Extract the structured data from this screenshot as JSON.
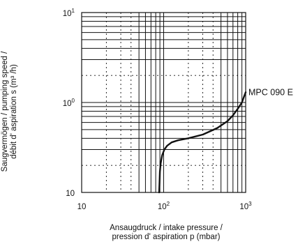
{
  "chart_data": {
    "type": "line",
    "xscale": "log",
    "yscale": "log",
    "xlim": [
      10,
      1000
    ],
    "ylim": [
      0.1,
      10
    ],
    "x_ticks": [
      {
        "base": "10",
        "exp": ""
      },
      {
        "base": "10",
        "exp": "2"
      },
      {
        "base": "10",
        "exp": "3"
      }
    ],
    "y_ticks": [
      {
        "base": "10",
        "exp": ""
      },
      {
        "base": "10",
        "exp": "0"
      },
      {
        "base": "10",
        "exp": "1"
      }
    ],
    "xlabel_lines": [
      "Ansaugdruck / intake pressure /",
      "pression d' aspiration p (mbar)"
    ],
    "ylabel_lines": [
      "Saugvermögen / pumping speed /",
      "débit d' aspiration s (m³ /h)"
    ],
    "grid": true,
    "series": [
      {
        "name": "MPC 090 E",
        "x": [
          88,
          89,
          90,
          92,
          96,
          102,
          110,
          125,
          150,
          200,
          300,
          450,
          600,
          700,
          800,
          900,
          950,
          1000
        ],
        "y": [
          0.1,
          0.13,
          0.17,
          0.21,
          0.26,
          0.3,
          0.33,
          0.36,
          0.38,
          0.4,
          0.44,
          0.52,
          0.62,
          0.72,
          0.85,
          1.0,
          1.15,
          1.3
        ]
      }
    ]
  }
}
